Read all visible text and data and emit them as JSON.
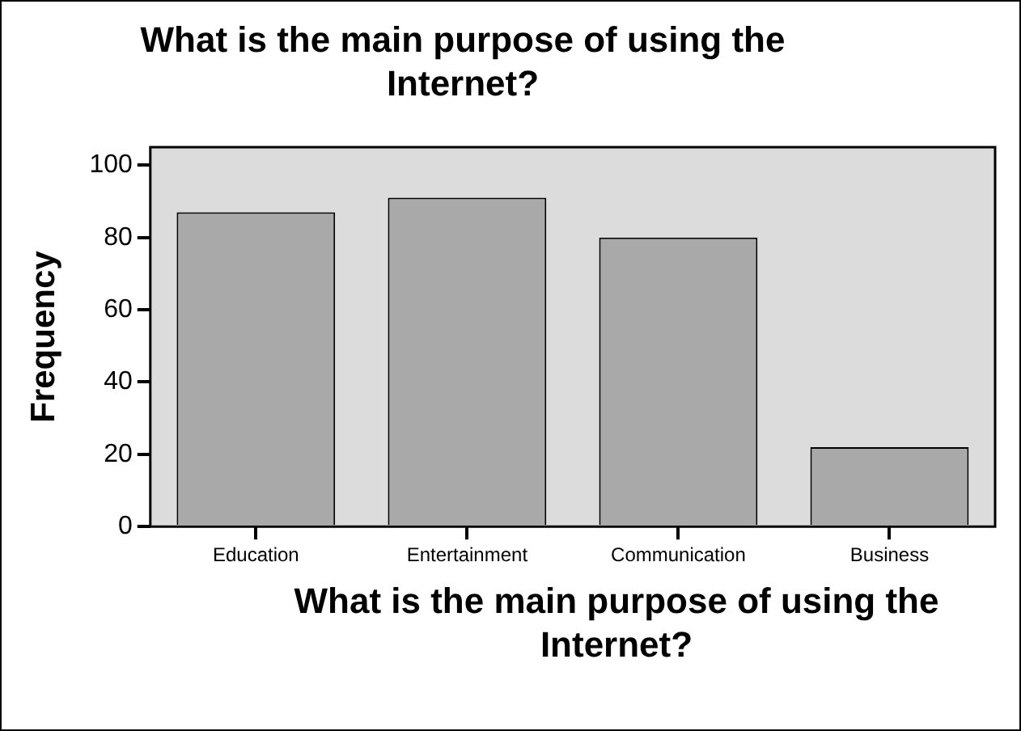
{
  "chart_data": {
    "type": "bar",
    "title": "What is the main purpose of using the Internet?",
    "xlabel": "What is the main purpose of using the Internet?",
    "ylabel": "Frequency",
    "categories": [
      "Education",
      "Entertainment",
      "Communication",
      "Business"
    ],
    "values": [
      87,
      91,
      80,
      22
    ],
    "color": "#a9a9a9",
    "ylim": [
      0,
      105
    ],
    "yticks": [
      0,
      20,
      40,
      60,
      80,
      100
    ],
    "grid": false,
    "legend": false
  }
}
